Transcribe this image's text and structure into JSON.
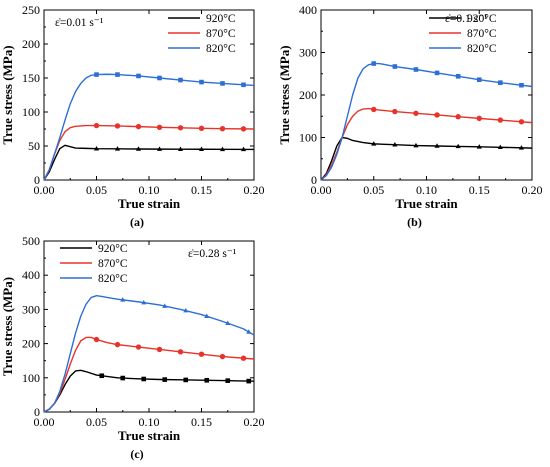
{
  "chart_data": [
    {
      "type": "line",
      "panel_label": "(a)",
      "annotation": "ε̇=0.01 s⁻¹",
      "xlabel": "True strain",
      "ylabel": "True stress (MPa)",
      "xlim": [
        0,
        0.2
      ],
      "ylim": [
        0,
        250
      ],
      "xticks": [
        "0.00",
        "0.05",
        "0.10",
        "0.15",
        "0.20"
      ],
      "yticks": [
        "0",
        "50",
        "100",
        "150",
        "200",
        "250"
      ],
      "legend_position": "top-right",
      "series": [
        {
          "name": "920°C",
          "color": "#000000",
          "marker": "triangle",
          "x": [
            0,
            0.005,
            0.01,
            0.015,
            0.02,
            0.025,
            0.03,
            0.04,
            0.05,
            0.07,
            0.09,
            0.11,
            0.13,
            0.15,
            0.17,
            0.2
          ],
          "y": [
            0,
            12,
            30,
            46,
            51,
            49,
            47,
            46.5,
            46,
            45.8,
            45.6,
            45.4,
            45.3,
            45.2,
            45.1,
            45
          ],
          "marker_x": [
            0.05,
            0.07,
            0.09,
            0.11,
            0.13,
            0.15,
            0.17,
            0.19
          ]
        },
        {
          "name": "870°C",
          "color": "#e8332a",
          "marker": "circle",
          "x": [
            0,
            0.005,
            0.01,
            0.015,
            0.02,
            0.025,
            0.03,
            0.04,
            0.05,
            0.07,
            0.09,
            0.11,
            0.13,
            0.15,
            0.17,
            0.2
          ],
          "y": [
            0,
            15,
            38,
            58,
            71,
            77,
            79,
            80,
            80,
            79.5,
            78.5,
            77.5,
            76.8,
            76,
            75.5,
            75
          ],
          "marker_x": [
            0.05,
            0.07,
            0.09,
            0.11,
            0.13,
            0.15,
            0.17,
            0.19
          ]
        },
        {
          "name": "820°C",
          "color": "#2e6fd6",
          "marker": "square",
          "x": [
            0,
            0.005,
            0.01,
            0.015,
            0.02,
            0.025,
            0.03,
            0.035,
            0.04,
            0.045,
            0.05,
            0.06,
            0.07,
            0.09,
            0.11,
            0.13,
            0.15,
            0.17,
            0.2
          ],
          "y": [
            0,
            15,
            38,
            62,
            88,
            112,
            130,
            142,
            150,
            154,
            155,
            155.5,
            155,
            153,
            150,
            147,
            144,
            142,
            139
          ],
          "marker_x": [
            0.05,
            0.07,
            0.09,
            0.11,
            0.13,
            0.15,
            0.17,
            0.19
          ]
        }
      ]
    },
    {
      "type": "line",
      "panel_label": "(b)",
      "annotation": "ε̇=0.1 s⁻¹",
      "xlabel": "True strain",
      "ylabel": "True stress (MPa)",
      "xlim": [
        0,
        0.2
      ],
      "ylim": [
        0,
        400
      ],
      "xticks": [
        "0.00",
        "0.05",
        "0.10",
        "0.15",
        "0.20"
      ],
      "yticks": [
        "0",
        "100",
        "200",
        "300",
        "400"
      ],
      "legend_position": "top-right",
      "series": [
        {
          "name": "920°C",
          "color": "#000000",
          "marker": "triangle",
          "x": [
            0,
            0.005,
            0.01,
            0.015,
            0.02,
            0.025,
            0.03,
            0.04,
            0.05,
            0.07,
            0.09,
            0.11,
            0.13,
            0.15,
            0.17,
            0.2
          ],
          "y": [
            0,
            15,
            45,
            80,
            100,
            98,
            93,
            88,
            85,
            83,
            81,
            80,
            79,
            78,
            77,
            75
          ],
          "marker_x": [
            0.05,
            0.07,
            0.09,
            0.11,
            0.13,
            0.15,
            0.17,
            0.19
          ]
        },
        {
          "name": "870°C",
          "color": "#e8332a",
          "marker": "circle",
          "x": [
            0,
            0.005,
            0.01,
            0.015,
            0.02,
            0.025,
            0.03,
            0.035,
            0.04,
            0.045,
            0.05,
            0.07,
            0.09,
            0.11,
            0.13,
            0.15,
            0.17,
            0.2
          ],
          "y": [
            0,
            12,
            35,
            65,
            100,
            130,
            150,
            162,
            167,
            168,
            166,
            161,
            157,
            153,
            149,
            145,
            141,
            135
          ],
          "marker_x": [
            0.05,
            0.07,
            0.09,
            0.11,
            0.13,
            0.15,
            0.17,
            0.19
          ]
        },
        {
          "name": "820°C",
          "color": "#2e6fd6",
          "marker": "square",
          "x": [
            0,
            0.005,
            0.01,
            0.015,
            0.02,
            0.025,
            0.03,
            0.035,
            0.04,
            0.045,
            0.05,
            0.055,
            0.06,
            0.07,
            0.09,
            0.11,
            0.13,
            0.15,
            0.17,
            0.2
          ],
          "y": [
            0,
            10,
            30,
            60,
            100,
            150,
            200,
            240,
            262,
            271,
            274,
            274,
            272,
            267,
            260,
            252,
            244,
            236,
            229,
            220
          ],
          "marker_x": [
            0.05,
            0.07,
            0.09,
            0.11,
            0.13,
            0.15,
            0.17,
            0.19
          ]
        }
      ]
    },
    {
      "type": "line",
      "panel_label": "(c)",
      "annotation": "ε̇=0.28 s⁻¹",
      "xlabel": "True strain",
      "ylabel": "True stress (MPa)",
      "xlim": [
        0,
        0.2
      ],
      "ylim": [
        0,
        500
      ],
      "xticks": [
        "0.00",
        "0.05",
        "0.10",
        "0.15",
        "0.20"
      ],
      "yticks": [
        "0",
        "100",
        "200",
        "300",
        "400",
        "500"
      ],
      "legend_position": "top-left",
      "series": [
        {
          "name": "920°C",
          "color": "#000000",
          "marker": "square",
          "x": [
            0,
            0.005,
            0.01,
            0.015,
            0.02,
            0.025,
            0.03,
            0.035,
            0.04,
            0.05,
            0.07,
            0.09,
            0.11,
            0.13,
            0.15,
            0.17,
            0.2
          ],
          "y": [
            0,
            8,
            25,
            50,
            80,
            105,
            120,
            122,
            118,
            108,
            100,
            97,
            95,
            94,
            93,
            92,
            90
          ],
          "marker_x": [
            0.055,
            0.075,
            0.095,
            0.115,
            0.135,
            0.155,
            0.175,
            0.195
          ]
        },
        {
          "name": "870°C",
          "color": "#e8332a",
          "marker": "circle",
          "x": [
            0,
            0.005,
            0.01,
            0.015,
            0.02,
            0.025,
            0.03,
            0.035,
            0.04,
            0.045,
            0.05,
            0.06,
            0.07,
            0.09,
            0.11,
            0.13,
            0.15,
            0.17,
            0.2
          ],
          "y": [
            0,
            8,
            25,
            55,
            95,
            140,
            180,
            208,
            218,
            218,
            212,
            203,
            197,
            190,
            183,
            176,
            169,
            162,
            155
          ],
          "marker_x": [
            0.05,
            0.07,
            0.09,
            0.11,
            0.13,
            0.15,
            0.17,
            0.19
          ]
        },
        {
          "name": "820°C",
          "color": "#2e6fd6",
          "marker": "triangle",
          "x": [
            0,
            0.005,
            0.01,
            0.015,
            0.02,
            0.025,
            0.03,
            0.035,
            0.04,
            0.045,
            0.05,
            0.055,
            0.06,
            0.07,
            0.09,
            0.11,
            0.13,
            0.15,
            0.17,
            0.19,
            0.2
          ],
          "y": [
            0,
            8,
            25,
            60,
            110,
            170,
            230,
            280,
            315,
            335,
            340,
            338,
            335,
            330,
            322,
            313,
            300,
            285,
            265,
            243,
            225
          ],
          "marker_x": [
            0.075,
            0.095,
            0.115,
            0.135,
            0.155,
            0.175,
            0.195
          ]
        }
      ]
    }
  ]
}
